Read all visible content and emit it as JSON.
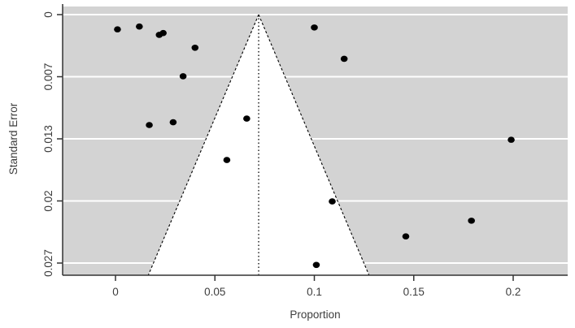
{
  "figure": {
    "background": "#ffffff",
    "kind": "funnel plot"
  },
  "chart_data": {
    "type": "scatter",
    "subtype": "funnel-plot",
    "title": "",
    "xlabel": "Proportion",
    "ylabel": "Standard Error",
    "plot_bg": "#d3d3d3",
    "grid_color": "#ffffff",
    "grid_on": true,
    "axis_color": "#333333",
    "tick_label_color": "#3d3d3d",
    "point_color": "#000000",
    "legend": "none",
    "funnel": {
      "center": 0.072,
      "ci_multiplier": 1.96,
      "fill": "#ffffff",
      "edge_color": "#000000",
      "edge_style": "dashed",
      "center_line_style": "dotted"
    },
    "x_axis": {
      "range": [
        -0.027,
        0.227
      ],
      "ticks": [
        {
          "label": "0",
          "value": 0
        },
        {
          "label": "0.05",
          "value": 0.05
        },
        {
          "label": "0.1",
          "value": 0.1
        },
        {
          "label": "0.15",
          "value": 0.15
        },
        {
          "label": "0.2",
          "value": 0.2
        }
      ]
    },
    "y_axis": {
      "inverted": true,
      "range": [
        -0.0009,
        0.0283
      ],
      "ticks": [
        {
          "label": "0",
          "value": 0
        },
        {
          "label": "0.007",
          "value": 0.00675
        },
        {
          "label": "0.013",
          "value": 0.0135
        },
        {
          "label": "0.02",
          "value": 0.02025
        },
        {
          "label": "0.027",
          "value": 0.027
        }
      ]
    },
    "points": [
      {
        "x": 0.001,
        "se": 0.0016
      },
      {
        "x": 0.012,
        "se": 0.0013
      },
      {
        "x": 0.022,
        "se": 0.0022
      },
      {
        "x": 0.024,
        "se": 0.002
      },
      {
        "x": 0.04,
        "se": 0.0036
      },
      {
        "x": 0.034,
        "se": 0.0067
      },
      {
        "x": 0.017,
        "se": 0.012
      },
      {
        "x": 0.029,
        "se": 0.0117
      },
      {
        "x": 0.066,
        "se": 0.0113
      },
      {
        "x": 0.056,
        "se": 0.0158
      },
      {
        "x": 0.1,
        "se": 0.0014
      },
      {
        "x": 0.115,
        "se": 0.0048
      },
      {
        "x": 0.199,
        "se": 0.0136
      },
      {
        "x": 0.109,
        "se": 0.0203
      },
      {
        "x": 0.146,
        "se": 0.0241
      },
      {
        "x": 0.179,
        "se": 0.0224
      },
      {
        "x": 0.101,
        "se": 0.0272
      }
    ]
  }
}
